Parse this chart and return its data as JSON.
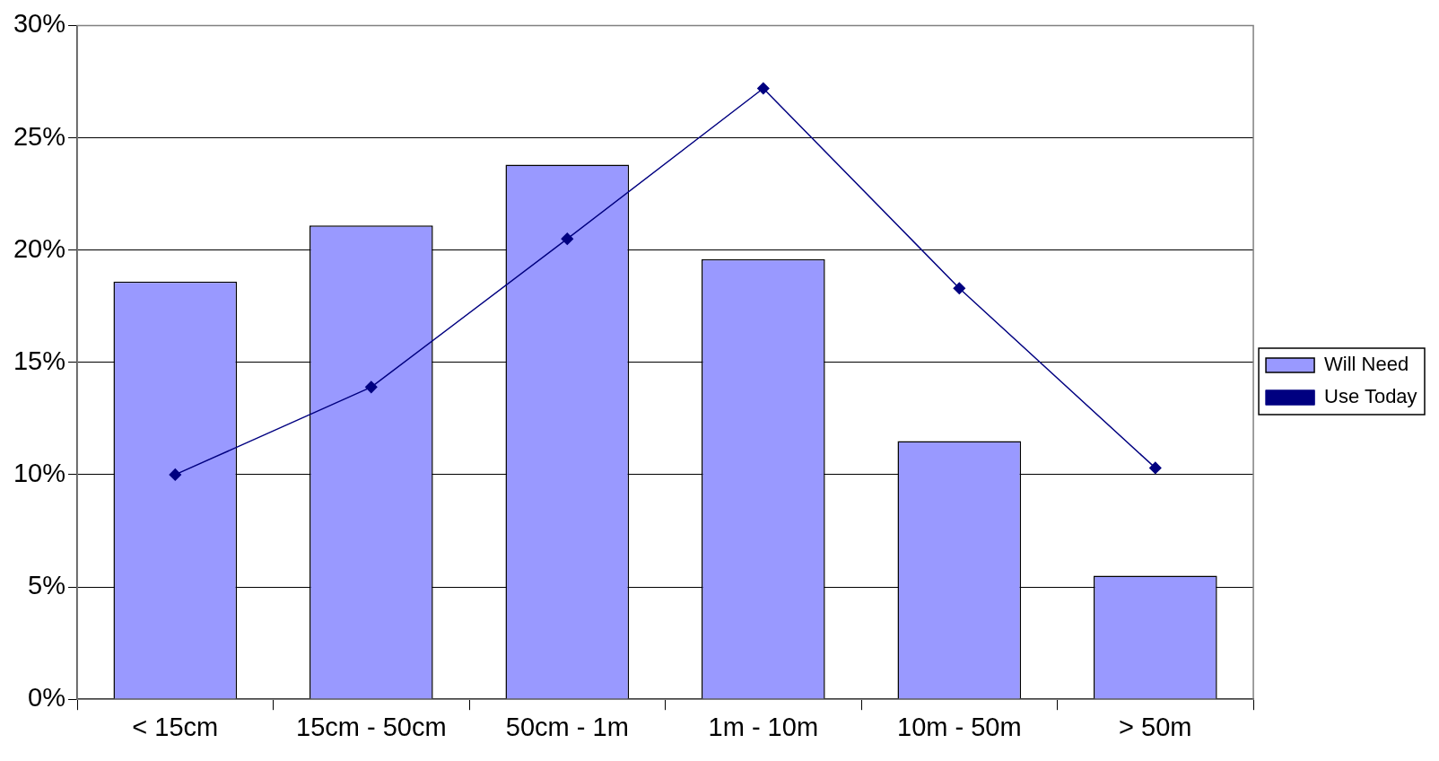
{
  "chart_data": {
    "type": "bar",
    "categories": [
      "< 15cm",
      "15cm - 50cm",
      "50cm - 1m",
      "1m - 10m",
      "10m - 50m",
      "> 50m"
    ],
    "series": [
      {
        "name": "Will Need",
        "color": "#9999ff",
        "values": [
          18.6,
          21.1,
          23.8,
          19.6,
          11.5,
          5.5
        ]
      },
      {
        "name": "Use Today",
        "type": "line",
        "color": "#000080",
        "values": [
          10.0,
          13.9,
          20.5,
          27.2,
          18.3,
          10.3
        ],
        "marker": "diamond"
      }
    ],
    "ylim": [
      0,
      30
    ],
    "yticks": [
      {
        "value": 0,
        "label": "0%"
      },
      {
        "value": 5,
        "label": "5%"
      },
      {
        "value": 10,
        "label": "10%"
      },
      {
        "value": 15,
        "label": "15%"
      },
      {
        "value": 20,
        "label": "20%"
      },
      {
        "value": 25,
        "label": "25%"
      },
      {
        "value": 30,
        "label": "30%"
      }
    ],
    "grid": "y",
    "legend": "right"
  }
}
